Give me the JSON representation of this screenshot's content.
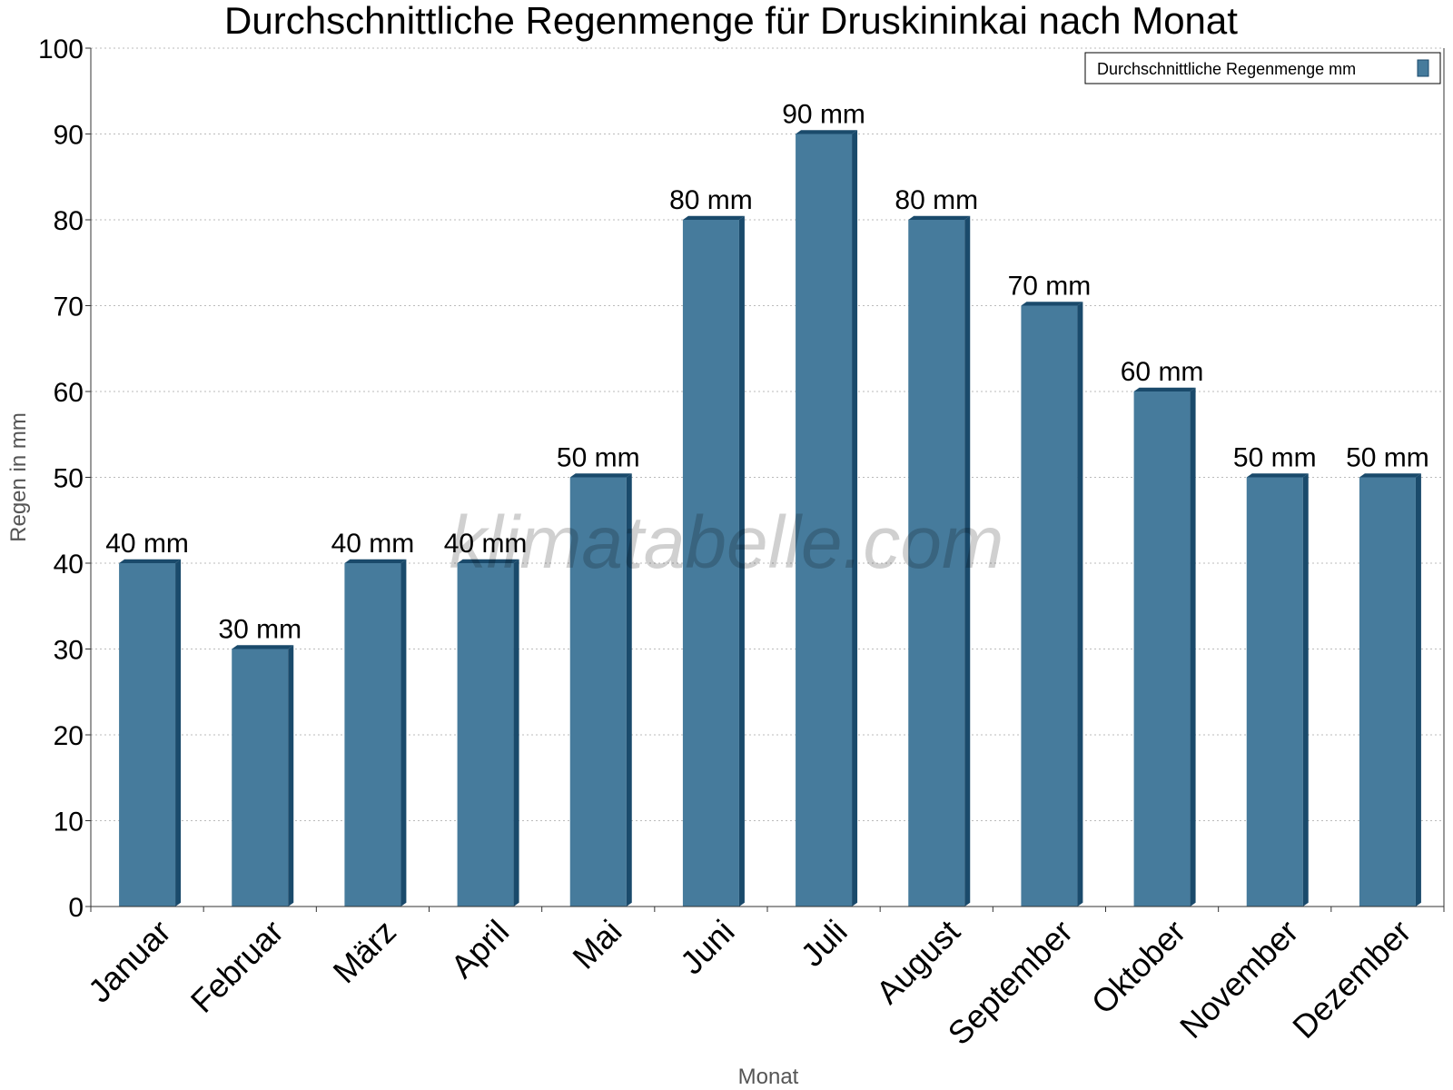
{
  "chart_data": {
    "type": "bar",
    "title": "Durchschnittliche Regenmenge für Druskininkai nach Monat",
    "xlabel": "Monat",
    "ylabel": "Regen in mm",
    "categories": [
      "Januar",
      "Februar",
      "März",
      "April",
      "Mai",
      "Juni",
      "Juli",
      "August",
      "September",
      "Oktober",
      "November",
      "Dezember"
    ],
    "series": [
      {
        "name": "Durchschnittliche Regenmenge mm",
        "values": [
          40,
          30,
          40,
          40,
          50,
          80,
          90,
          80,
          70,
          60,
          50,
          50
        ],
        "labels": [
          "40 mm",
          "30 mm",
          "40 mm",
          "40 mm",
          "50 mm",
          "80 mm",
          "90 mm",
          "80 mm",
          "70 mm",
          "60 mm",
          "50 mm",
          "50 mm"
        ],
        "color": "#467b9c",
        "edge_color": "#1a4a6b"
      }
    ],
    "ylim": [
      0,
      100
    ],
    "yticks": [
      0,
      10,
      20,
      30,
      40,
      50,
      60,
      70,
      80,
      90,
      100
    ],
    "grid": true,
    "legend_position": "top-right",
    "watermark": "klimatabelle.com"
  }
}
